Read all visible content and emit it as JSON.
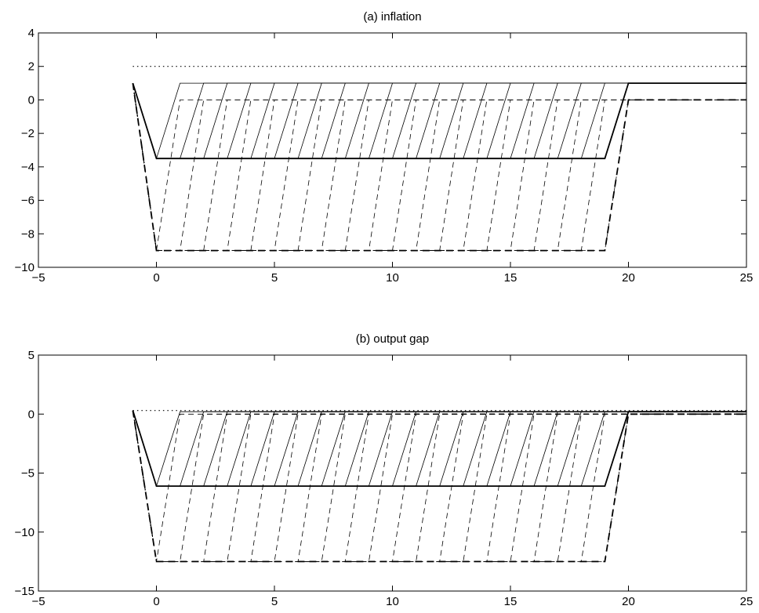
{
  "chart_data": [
    {
      "type": "line",
      "title": "(a) inflation",
      "xlabel": "",
      "ylabel": "",
      "xlim": [
        -5,
        25
      ],
      "ylim": [
        -10,
        4
      ],
      "xticks": [
        -5,
        0,
        5,
        10,
        15,
        20,
        25
      ],
      "yticks": [
        -10,
        -8,
        -6,
        -4,
        -2,
        0,
        2,
        4
      ],
      "xtick_labels": [
        "−5",
        "0",
        "5",
        "10",
        "15",
        "20",
        "25"
      ],
      "ytick_labels": [
        "−10",
        "−8",
        "−6",
        "−4",
        "−2",
        "0",
        "2",
        "4"
      ],
      "grid": false,
      "dotted_level": 2,
      "fan": {
        "pre_value": 1,
        "x_start": -1,
        "solid_level": 1,
        "solid_trough": -3.5,
        "dashed_level": 0,
        "dashed_trough": -9,
        "durations": [
          1,
          2,
          3,
          4,
          5,
          6,
          7,
          8,
          9,
          10,
          11,
          12,
          13,
          14,
          15,
          16,
          17,
          18,
          19,
          20
        ],
        "x_end": 25
      }
    },
    {
      "type": "line",
      "title": "(b) output gap",
      "xlabel": "",
      "ylabel": "",
      "xlim": [
        -5,
        25
      ],
      "ylim": [
        -15,
        5
      ],
      "xticks": [
        -5,
        0,
        5,
        10,
        15,
        20,
        25
      ],
      "yticks": [
        -15,
        -10,
        -5,
        0,
        5
      ],
      "xtick_labels": [
        "−5",
        "0",
        "5",
        "10",
        "15",
        "20",
        "25"
      ],
      "ytick_labels": [
        "−15",
        "−10",
        "−5",
        "0",
        "5"
      ],
      "grid": false,
      "dotted_level": 0.3,
      "fan": {
        "pre_value": 0.3,
        "x_start": -1,
        "solid_level": 0.2,
        "solid_trough": -6.1,
        "dashed_level": 0,
        "dashed_trough": -12.5,
        "durations": [
          1,
          2,
          3,
          4,
          5,
          6,
          7,
          8,
          9,
          10,
          11,
          12,
          13,
          14,
          15,
          16,
          17,
          18,
          19,
          20
        ],
        "x_end": 25
      }
    }
  ]
}
